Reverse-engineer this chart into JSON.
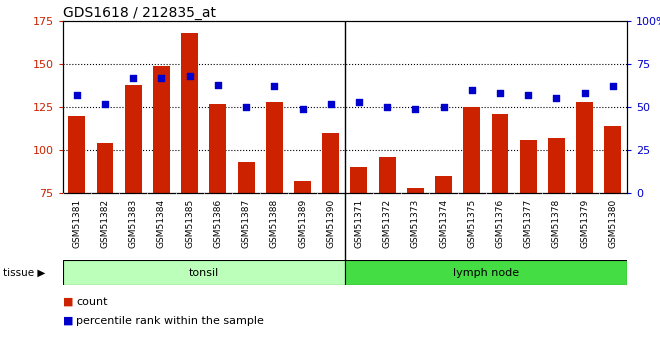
{
  "title": "GDS1618 / 212835_at",
  "categories": [
    "GSM51381",
    "GSM51382",
    "GSM51383",
    "GSM51384",
    "GSM51385",
    "GSM51386",
    "GSM51387",
    "GSM51388",
    "GSM51389",
    "GSM51390",
    "GSM51371",
    "GSM51372",
    "GSM51373",
    "GSM51374",
    "GSM51375",
    "GSM51376",
    "GSM51377",
    "GSM51378",
    "GSM51379",
    "GSM51380"
  ],
  "bar_values": [
    120,
    104,
    138,
    149,
    168,
    127,
    93,
    128,
    82,
    110,
    90,
    96,
    78,
    85,
    125,
    121,
    106,
    107,
    128,
    114
  ],
  "dot_values": [
    57,
    52,
    67,
    67,
    68,
    63,
    50,
    62,
    49,
    52,
    53,
    50,
    49,
    50,
    60,
    58,
    57,
    55,
    58,
    62
  ],
  "tonsil_count": 10,
  "lymph_count": 10,
  "tonsil_label": "tonsil",
  "lymph_label": "lymph node",
  "tissue_label": "tissue",
  "ylim_left": [
    75,
    175
  ],
  "ylim_right": [
    0,
    100
  ],
  "yticks_left": [
    75,
    100,
    125,
    150,
    175
  ],
  "yticks_right": [
    0,
    25,
    50,
    75,
    100
  ],
  "bar_color": "#cc2200",
  "dot_color": "#0000cc",
  "tonsil_color": "#bbffbb",
  "lymph_color": "#44dd44",
  "xtick_bg": "#cccccc",
  "legend_count": "count",
  "legend_pct": "percentile rank within the sample"
}
